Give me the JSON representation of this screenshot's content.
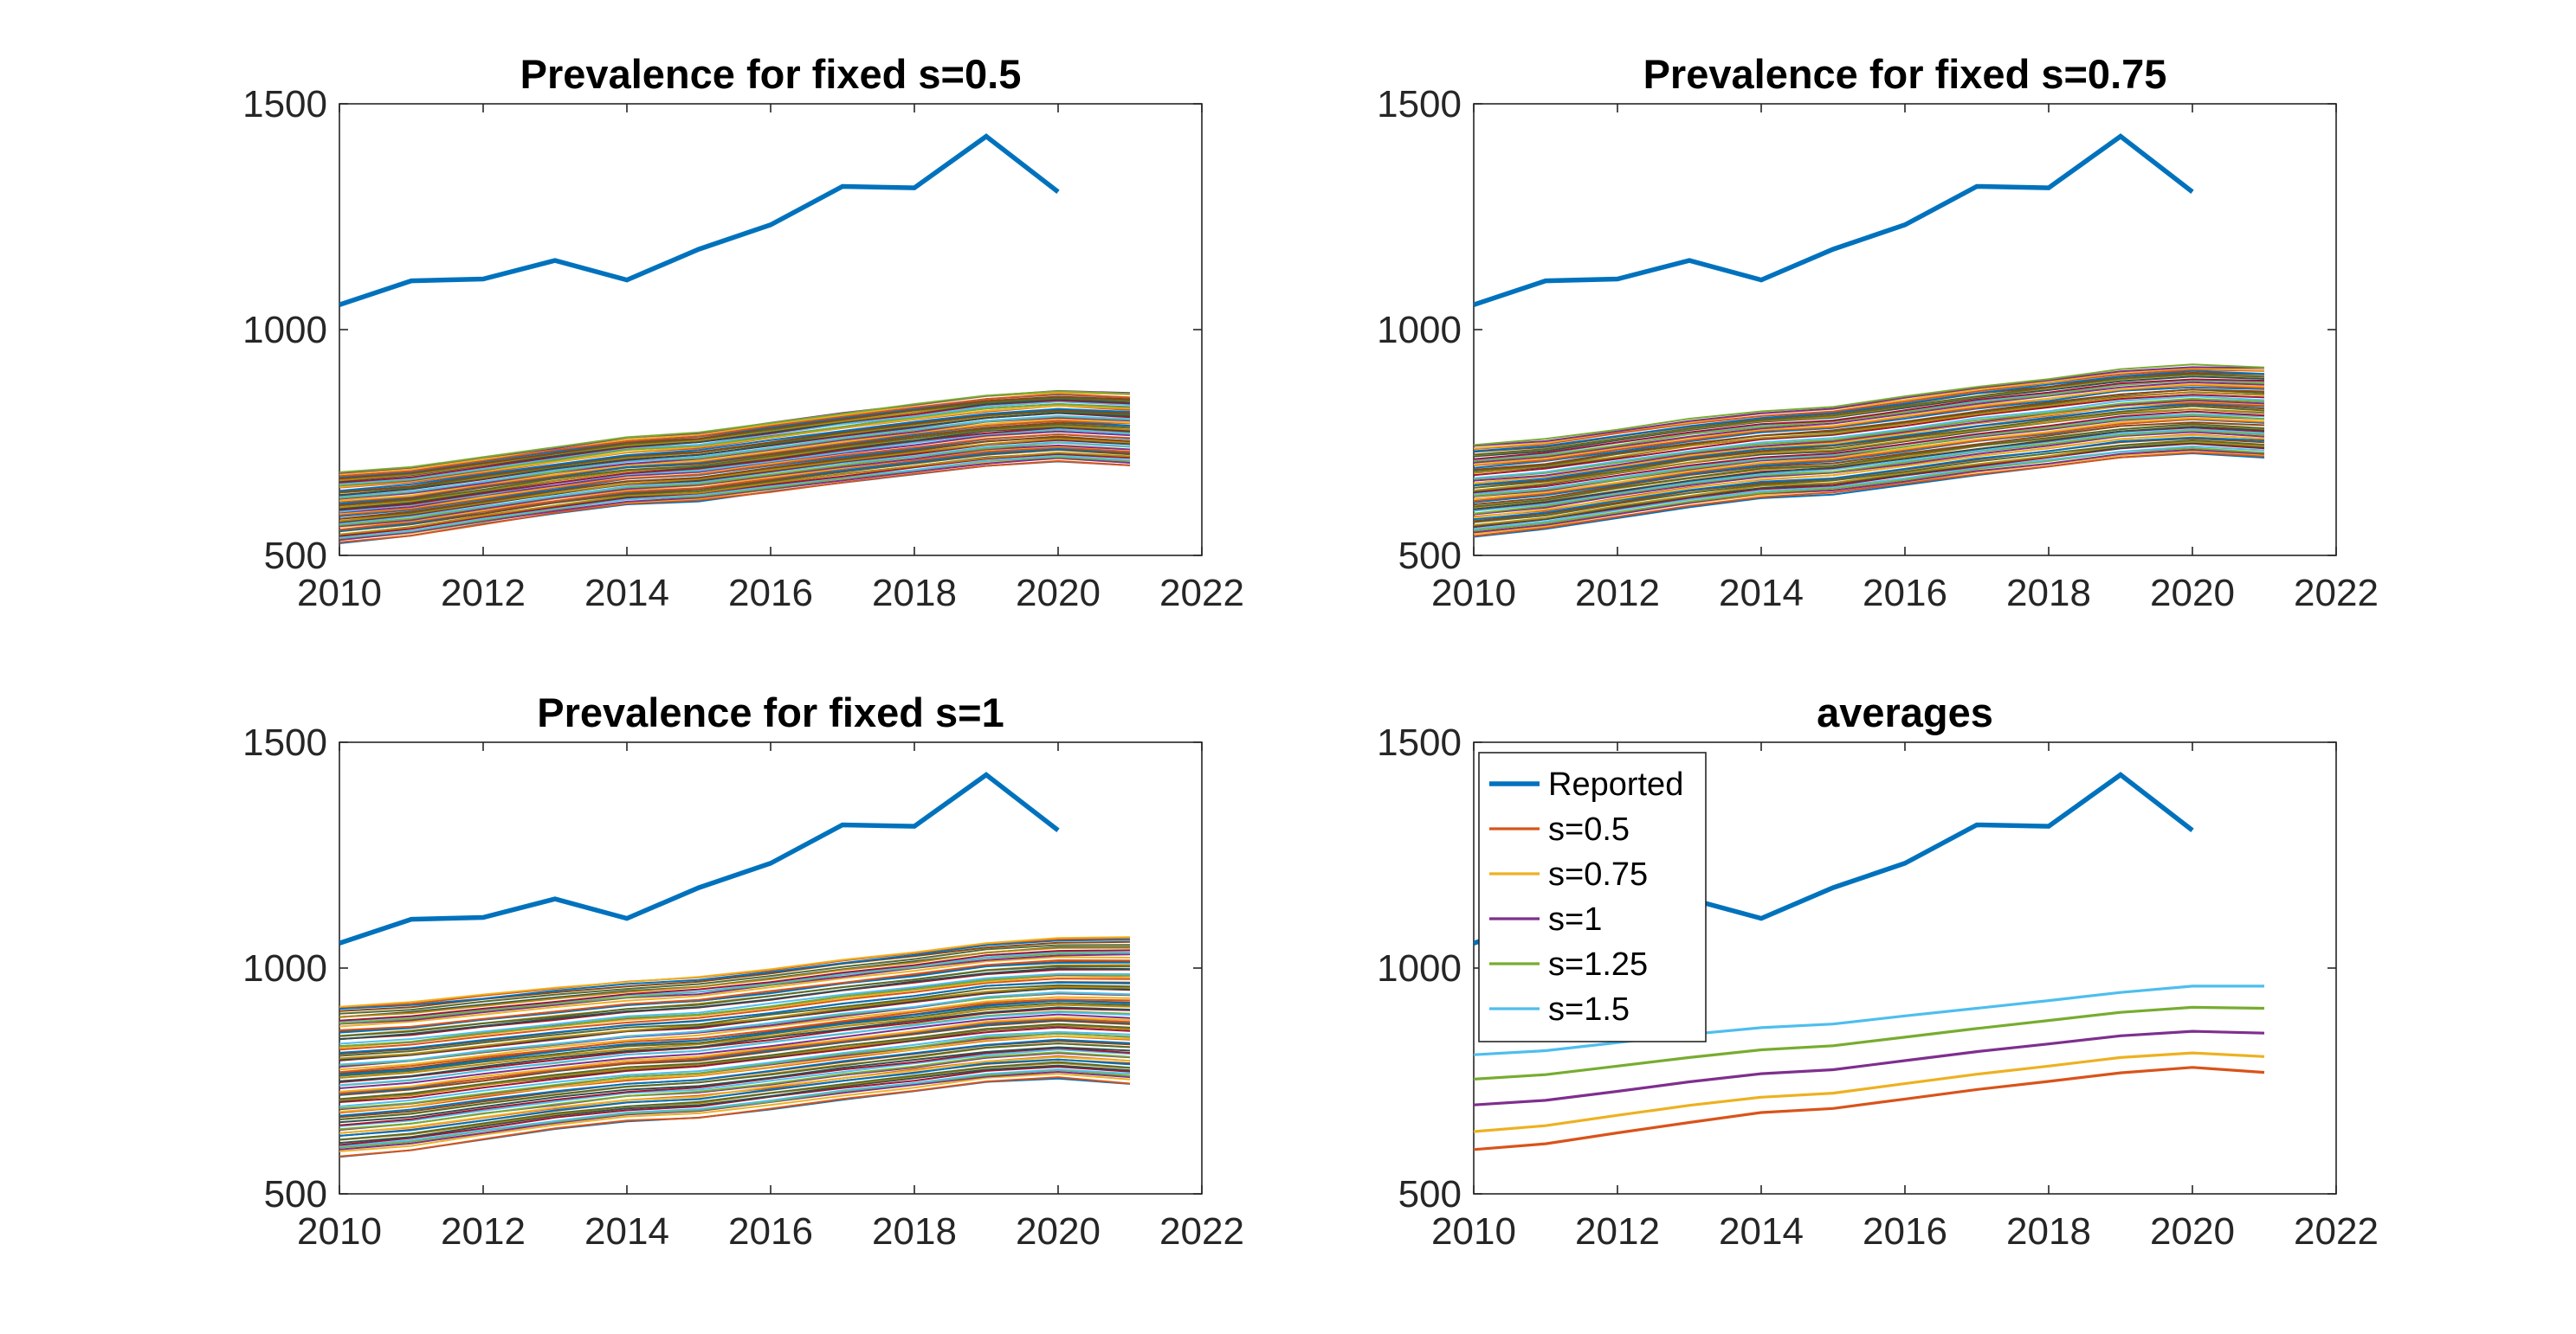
{
  "figure": {
    "colors": {
      "reported": "#0072BD",
      "axis": "#262626",
      "palette": [
        "#0072BD",
        "#D95319",
        "#EDB120",
        "#7E2F8E",
        "#77AC30",
        "#4DBEEE",
        "#A2142F"
      ]
    }
  },
  "chart_data": [
    {
      "type": "line",
      "title": "Prevalence for fixed s=0.5",
      "xlim": [
        2010,
        2022
      ],
      "ylim": [
        500,
        1500
      ],
      "xticks": [
        "2010",
        "2012",
        "2014",
        "2016",
        "2018",
        "2020",
        "2022"
      ],
      "yticks": [
        "500",
        "1000",
        "1500"
      ],
      "grid": false,
      "reported": {
        "name": "Reported",
        "x": [
          2010,
          2011,
          2012,
          2013,
          2014,
          2015,
          2016,
          2017,
          2018,
          2019,
          2020
        ],
        "y": [
          1055,
          1108,
          1112,
          1153,
          1110,
          1178,
          1232,
          1317,
          1314,
          1428,
          1305
        ]
      },
      "ensemble": {
        "x": [
          2010,
          2011,
          2012,
          2013,
          2014,
          2015,
          2016,
          2017,
          2018,
          2019,
          2020,
          2021
        ],
        "count": 60,
        "y_low": [
          527,
          543,
          568,
          592,
          612,
          620,
          640,
          660,
          678,
          697,
          708,
          698
        ],
        "y_high": [
          685,
          696,
          718,
          740,
          762,
          772,
          794,
          816,
          836,
          856,
          866,
          860
        ]
      }
    },
    {
      "type": "line",
      "title": "Prevalence for fixed s=0.75",
      "xlim": [
        2010,
        2022
      ],
      "ylim": [
        500,
        1500
      ],
      "xticks": [
        "2010",
        "2012",
        "2014",
        "2016",
        "2018",
        "2020",
        "2022"
      ],
      "yticks": [
        "500",
        "1000",
        "1500"
      ],
      "grid": false,
      "reported": {
        "name": "Reported",
        "x": [
          2010,
          2011,
          2012,
          2013,
          2014,
          2015,
          2016,
          2017,
          2018,
          2019,
          2020
        ],
        "y": [
          1055,
          1108,
          1112,
          1153,
          1110,
          1178,
          1232,
          1317,
          1314,
          1428,
          1305
        ]
      },
      "ensemble": {
        "x": [
          2010,
          2011,
          2012,
          2013,
          2014,
          2015,
          2016,
          2017,
          2018,
          2019,
          2020,
          2021
        ],
        "count": 60,
        "y_low": [
          542,
          558,
          584,
          608,
          628,
          636,
          656,
          678,
          696,
          716,
          726,
          716
        ],
        "y_high": [
          746,
          758,
          780,
          802,
          820,
          830,
          852,
          874,
          892,
          912,
          922,
          918
        ]
      }
    },
    {
      "type": "line",
      "title": "Prevalence for fixed s=1",
      "xlim": [
        2010,
        2022
      ],
      "ylim": [
        500,
        1500
      ],
      "xticks": [
        "2010",
        "2012",
        "2014",
        "2016",
        "2018",
        "2020",
        "2022"
      ],
      "yticks": [
        "500",
        "1000",
        "1500"
      ],
      "grid": false,
      "reported": {
        "name": "Reported",
        "x": [
          2010,
          2011,
          2012,
          2013,
          2014,
          2015,
          2016,
          2017,
          2018,
          2019,
          2020
        ],
        "y": [
          1055,
          1108,
          1112,
          1153,
          1110,
          1178,
          1232,
          1317,
          1314,
          1428,
          1305
        ]
      },
      "ensemble": {
        "x": [
          2010,
          2011,
          2012,
          2013,
          2014,
          2015,
          2016,
          2017,
          2018,
          2019,
          2020,
          2021
        ],
        "count": 80,
        "y_low": [
          582,
          596,
          620,
          642,
          660,
          668,
          688,
          708,
          726,
          746,
          756,
          744
        ],
        "y_high": [
          915,
          924,
          940,
          955,
          970,
          980,
          998,
          1018,
          1036,
          1056,
          1066,
          1068
        ]
      }
    },
    {
      "type": "line",
      "title": "averages",
      "xlim": [
        2010,
        2022
      ],
      "ylim": [
        500,
        1500
      ],
      "xticks": [
        "2010",
        "2012",
        "2014",
        "2016",
        "2018",
        "2020",
        "2022"
      ],
      "yticks": [
        "500",
        "1000",
        "1500"
      ],
      "grid": false,
      "legend": "top-left",
      "series": [
        {
          "name": "Reported",
          "color": "#0072BD",
          "x": [
            2010,
            2011,
            2012,
            2013,
            2014,
            2015,
            2016,
            2017,
            2018,
            2019,
            2020
          ],
          "y": [
            1055,
            1108,
            1112,
            1153,
            1110,
            1178,
            1232,
            1317,
            1314,
            1428,
            1305
          ]
        },
        {
          "name": "s=0.5",
          "color": "#D95319",
          "x": [
            2010,
            2011,
            2012,
            2013,
            2014,
            2015,
            2016,
            2017,
            2018,
            2019,
            2020,
            2021
          ],
          "y": [
            598,
            611,
            635,
            658,
            680,
            689,
            710,
            731,
            749,
            768,
            780,
            769
          ]
        },
        {
          "name": "s=0.75",
          "color": "#EDB120",
          "x": [
            2010,
            2011,
            2012,
            2013,
            2014,
            2015,
            2016,
            2017,
            2018,
            2019,
            2020,
            2021
          ],
          "y": [
            638,
            651,
            674,
            696,
            714,
            723,
            744,
            765,
            783,
            802,
            812,
            804
          ]
        },
        {
          "name": "s=1",
          "color": "#7E2F8E",
          "x": [
            2010,
            2011,
            2012,
            2013,
            2014,
            2015,
            2016,
            2017,
            2018,
            2019,
            2020,
            2021
          ],
          "y": [
            697,
            707,
            727,
            748,
            766,
            775,
            795,
            815,
            832,
            850,
            860,
            856
          ]
        },
        {
          "name": "s=1.25",
          "color": "#77AC30",
          "x": [
            2010,
            2011,
            2012,
            2013,
            2014,
            2015,
            2016,
            2017,
            2018,
            2019,
            2020,
            2021
          ],
          "y": [
            754,
            764,
            783,
            802,
            819,
            828,
            847,
            866,
            884,
            902,
            913,
            911
          ]
        },
        {
          "name": "s=1.5",
          "color": "#4DBEEE",
          "x": [
            2010,
            2011,
            2012,
            2013,
            2014,
            2015,
            2016,
            2017,
            2018,
            2019,
            2020,
            2021
          ],
          "y": [
            808,
            817,
            835,
            853,
            868,
            876,
            894,
            911,
            928,
            946,
            960,
            960
          ]
        }
      ]
    }
  ]
}
